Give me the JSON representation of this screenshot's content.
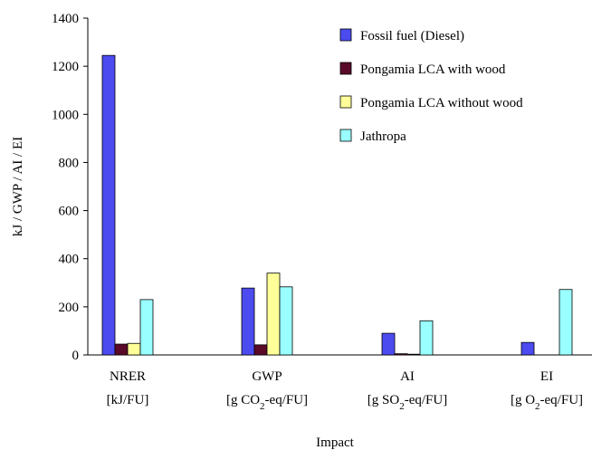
{
  "chart_data": {
    "type": "bar",
    "title": "",
    "xlabel": "Impact",
    "ylabel": "kJ / GWP / AI / EI",
    "ylim": [
      0,
      1400
    ],
    "yticks": [
      0,
      200,
      400,
      600,
      800,
      1000,
      1200,
      1400
    ],
    "grid": false,
    "legend_position": "top-right",
    "categories": [
      {
        "name": "NRER",
        "unit": "[kJ/FU]"
      },
      {
        "name": "GWP",
        "unit": "[g CO2-eq/FU]"
      },
      {
        "name": "AI",
        "unit": "[g SO2-eq/FU]"
      },
      {
        "name": "EI",
        "unit": "[g O2-eq/FU]"
      }
    ],
    "series": [
      {
        "name": "Fossil fuel (Diesel)",
        "color": "#4b4bf0",
        "values": [
          1245,
          278,
          90,
          52
        ]
      },
      {
        "name": "Pongamia LCA with wood",
        "color": "#5a0a28",
        "values": [
          45,
          42,
          5,
          0
        ]
      },
      {
        "name": "Pongamia LCA without wood",
        "color": "#ffff99",
        "values": [
          48,
          340,
          3,
          0
        ]
      },
      {
        "name": "Jathropa",
        "color": "#99ffff",
        "values": [
          230,
          283,
          142,
          272
        ]
      }
    ]
  }
}
